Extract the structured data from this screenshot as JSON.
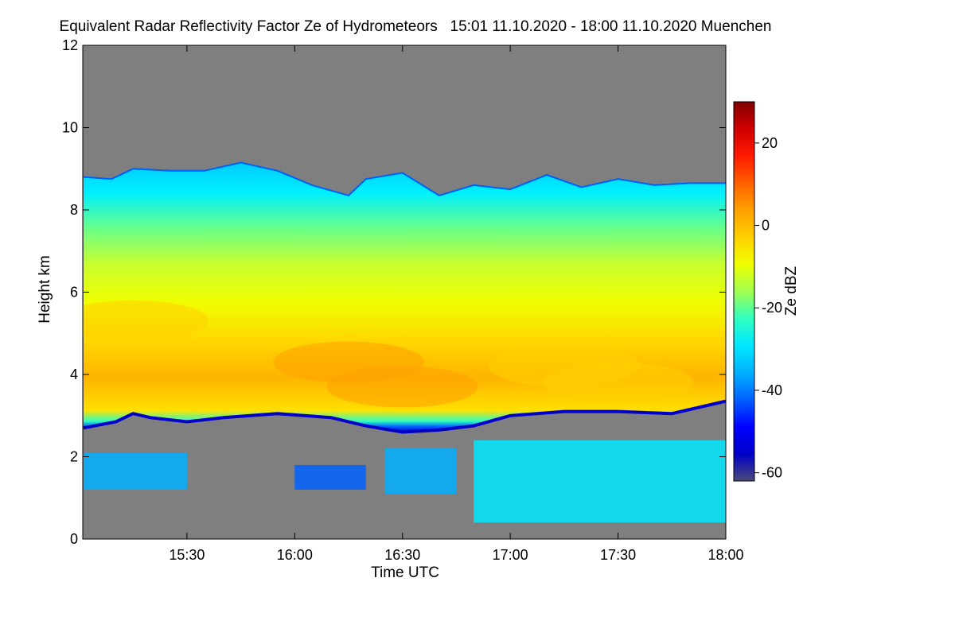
{
  "chart_data": {
    "type": "heatmap",
    "title": "Equivalent Radar Reflectivity Factor Ze of Hydrometeors   15:01 11.10.2020 - 18:00 11.10.2020 Muenchen",
    "xlabel": "Time UTC",
    "ylabel": "Height km",
    "colorbar_label": "Ze dBZ",
    "x_start_hours": 15.0167,
    "x_end_hours": 18.0,
    "xticks": [
      "15:30",
      "16:00",
      "16:30",
      "17:00",
      "17:30",
      "18:00"
    ],
    "xtick_hours": [
      15.5,
      16.0,
      16.5,
      17.0,
      17.5,
      18.0
    ],
    "ylim": [
      0,
      12
    ],
    "yticks": [
      0,
      2,
      4,
      6,
      8,
      10,
      12
    ],
    "colorbar_range": [
      -62,
      30
    ],
    "colorbar_ticks": [
      -60,
      -40,
      -20,
      0,
      20
    ],
    "nodata_color": "#7f7f7f",
    "colormap": [
      "#4a4a78",
      "#0000c8",
      "#0000ff",
      "#0060ff",
      "#00b0ff",
      "#00e8ff",
      "#30ffc0",
      "#a0ff50",
      "#f0ff00",
      "#ffd000",
      "#ffa000",
      "#ff6000",
      "#ff1a00",
      "#d00000",
      "#800000"
    ],
    "cloud_layer": {
      "top_km": [
        [
          15.02,
          8.8
        ],
        [
          15.15,
          8.75
        ],
        [
          15.25,
          9.0
        ],
        [
          15.42,
          8.95
        ],
        [
          15.58,
          8.95
        ],
        [
          15.75,
          9.15
        ],
        [
          15.92,
          8.95
        ],
        [
          16.08,
          8.6
        ],
        [
          16.25,
          8.35
        ],
        [
          16.33,
          8.75
        ],
        [
          16.5,
          8.9
        ],
        [
          16.67,
          8.35
        ],
        [
          16.83,
          8.6
        ],
        [
          17.0,
          8.5
        ],
        [
          17.17,
          8.85
        ],
        [
          17.33,
          8.55
        ],
        [
          17.5,
          8.75
        ],
        [
          17.67,
          8.6
        ],
        [
          17.83,
          8.65
        ],
        [
          18.0,
          8.65
        ]
      ],
      "base_km": [
        [
          15.02,
          2.7
        ],
        [
          15.17,
          2.85
        ],
        [
          15.25,
          3.05
        ],
        [
          15.33,
          2.95
        ],
        [
          15.5,
          2.85
        ],
        [
          15.67,
          2.95
        ],
        [
          15.92,
          3.05
        ],
        [
          16.17,
          2.95
        ],
        [
          16.33,
          2.75
        ],
        [
          16.5,
          2.6
        ],
        [
          16.67,
          2.65
        ],
        [
          16.83,
          2.75
        ],
        [
          17.0,
          3.0
        ],
        [
          17.25,
          3.1
        ],
        [
          17.5,
          3.1
        ],
        [
          17.75,
          3.05
        ],
        [
          18.0,
          3.35
        ]
      ],
      "core_dbz": [
        {
          "hour": 15.25,
          "height_km": 5.3,
          "value": -2
        },
        {
          "hour": 16.25,
          "height_km": 4.3,
          "value": 3
        },
        {
          "hour": 16.5,
          "height_km": 3.7,
          "value": 4
        },
        {
          "hour": 17.25,
          "height_km": 4.2,
          "value": -1
        },
        {
          "hour": 17.5,
          "height_km": 3.8,
          "value": 0
        }
      ]
    },
    "low_echoes": [
      {
        "start_hour": 15.02,
        "end_hour": 15.5,
        "base_km": 1.2,
        "top_km": 2.1,
        "value": -35
      },
      {
        "start_hour": 16.0,
        "end_hour": 16.33,
        "base_km": 1.2,
        "top_km": 1.8,
        "value": -45
      },
      {
        "start_hour": 16.42,
        "end_hour": 16.75,
        "base_km": 1.1,
        "top_km": 2.2,
        "value": -35
      },
      {
        "start_hour": 16.83,
        "end_hour": 18.0,
        "base_km": 0.4,
        "top_km": 2.4,
        "value": -30
      }
    ]
  }
}
